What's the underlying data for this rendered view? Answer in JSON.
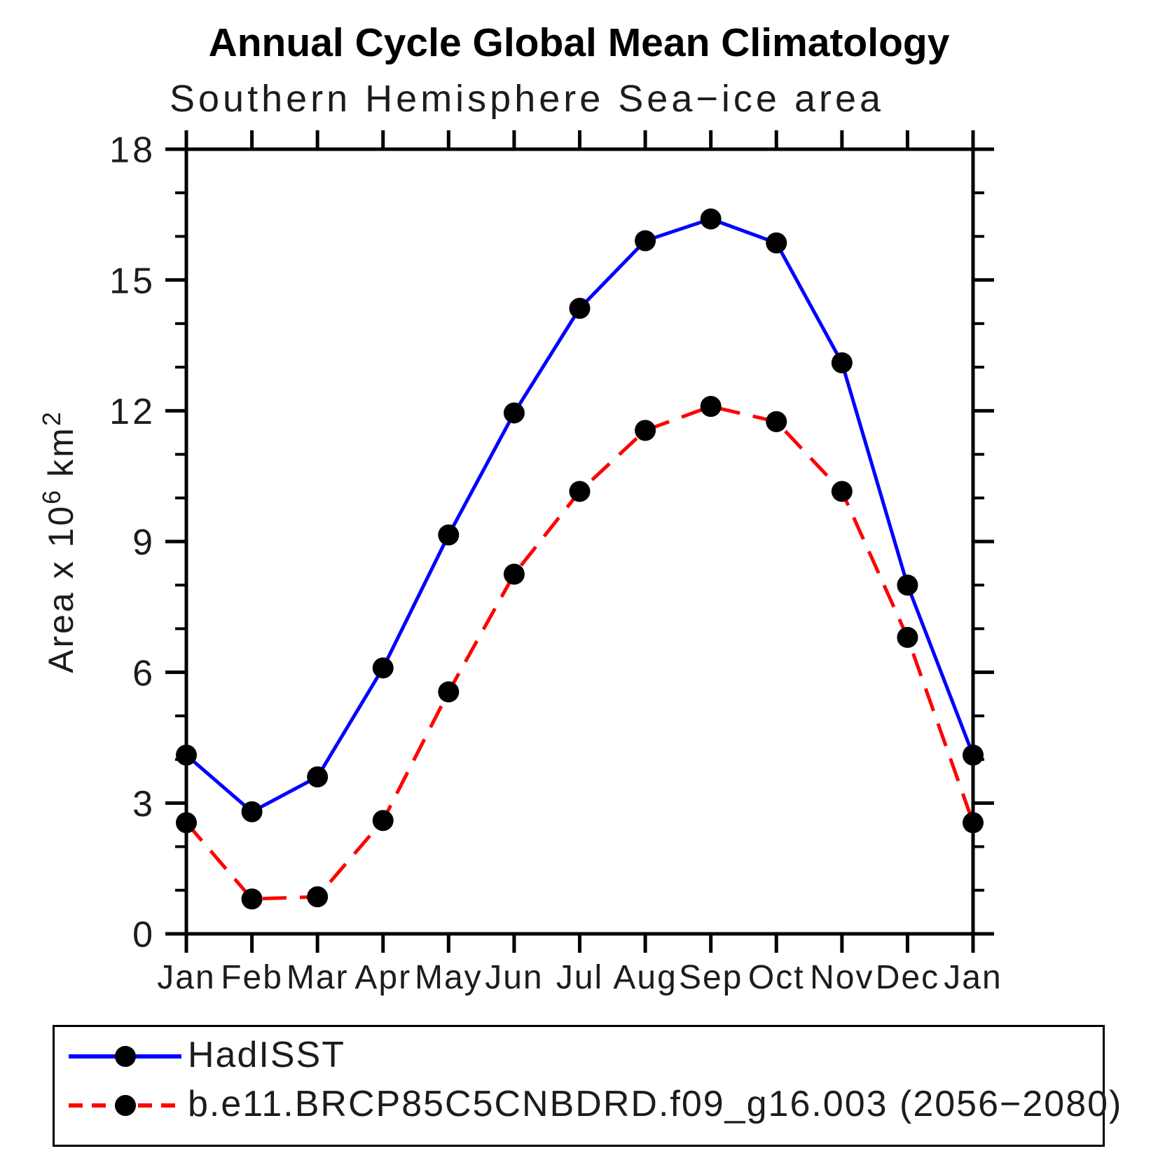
{
  "header": {
    "title": "Annual Cycle Global Mean Climatology",
    "subtitle": "Southern Hemisphere Sea−ice area"
  },
  "y_axis": {
    "label_prefix": "Area x 10",
    "label_exponent": "6",
    "label_unit": "km",
    "label_unit_exponent": "2",
    "major_ticks": [
      0,
      3,
      6,
      9,
      12,
      15,
      18
    ],
    "minor_tick_step": 1,
    "range": [
      0,
      18
    ]
  },
  "x_axis": {
    "categories": [
      "Jan",
      "Feb",
      "Mar",
      "Apr",
      "May",
      "Jun",
      "Jul",
      "Aug",
      "Sep",
      "Oct",
      "Nov",
      "Dec",
      "Jan"
    ]
  },
  "chart_data": {
    "type": "line",
    "title": "Annual Cycle Global Mean Climatology",
    "subtitle": "Southern Hemisphere Sea−ice area",
    "xlabel": "",
    "ylabel": "Area x 10^6 km^2",
    "categories": [
      "Jan",
      "Feb",
      "Mar",
      "Apr",
      "May",
      "Jun",
      "Jul",
      "Aug",
      "Sep",
      "Oct",
      "Nov",
      "Dec",
      "Jan"
    ],
    "ylim": [
      0,
      18
    ],
    "yticks_major": [
      0,
      3,
      6,
      9,
      12,
      15,
      18
    ],
    "ytick_minor_step": 1,
    "grid": false,
    "legend_position": "bottom-left-box",
    "series": [
      {
        "name": "HadISST",
        "color": "#0000ff",
        "line_style": "solid",
        "marker": "filled-circle",
        "marker_color": "#000000",
        "values": [
          4.1,
          2.8,
          3.6,
          6.1,
          9.15,
          11.95,
          14.35,
          15.9,
          16.4,
          15.85,
          13.1,
          8.0,
          4.1
        ]
      },
      {
        "name": "b.e11.BRCP85C5CNBDRD.f09_g16.003 (2056−2080)",
        "color": "#ff0000",
        "line_style": "dashed",
        "marker": "filled-circle",
        "marker_color": "#000000",
        "values": [
          2.55,
          0.8,
          0.85,
          2.6,
          5.55,
          8.25,
          10.15,
          11.55,
          12.1,
          11.75,
          10.15,
          6.8,
          2.55
        ]
      }
    ]
  }
}
